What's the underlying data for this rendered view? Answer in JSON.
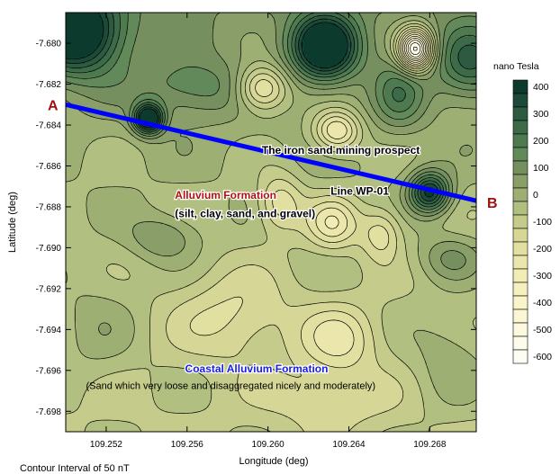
{
  "chart_data": {
    "type": "contour",
    "xlabel": "Longitude (deg)",
    "ylabel": "Latitude (deg)",
    "xlim": [
      109.25,
      109.2703
    ],
    "ylim": [
      -7.699,
      -7.6785
    ],
    "xticks": [
      109.252,
      109.256,
      109.26,
      109.264,
      109.268
    ],
    "xtick_labels": [
      "109.252",
      "109.256",
      "109.260",
      "109.264",
      "109.268"
    ],
    "yticks": [
      -7.68,
      -7.682,
      -7.684,
      -7.686,
      -7.688,
      -7.69,
      -7.692,
      -7.694,
      -7.696,
      -7.698
    ],
    "ytick_labels": [
      "-7.680",
      "-7.682",
      "-7.684",
      "-7.686",
      "-7.688",
      "-7.690",
      "-7.692",
      "-7.694",
      "-7.696",
      "-7.698"
    ],
    "contour_interval_note": "Contour Interval of 50 nT",
    "colorbar": {
      "title": "nano Tesla",
      "levels": [
        400,
        350,
        300,
        250,
        200,
        150,
        100,
        50,
        0,
        -50,
        -100,
        -150,
        -200,
        -250,
        -300,
        -350,
        -400,
        -450,
        -500,
        -550,
        -600
      ],
      "labels": [
        "400",
        "300",
        "200",
        "100",
        "0",
        "-100",
        "-200",
        "-300",
        "-400",
        "-500",
        "-600"
      ],
      "colors": [
        "#0c3b2e",
        "#1d4a38",
        "#2d5a40",
        "#3d6a48",
        "#4f7a50",
        "#62895a",
        "#768f5e",
        "#899e68",
        "#9daf72",
        "#b1bf80",
        "#c5cb8a",
        "#d6d796",
        "#e2e0a0",
        "#ebe6ab",
        "#f2ecb5",
        "#f6f0c0",
        "#f9f4ca",
        "#fbf7d5",
        "#fcf9df",
        "#fdfbea",
        "#fefdf4"
      ]
    },
    "profile": {
      "name": "Line WP-01",
      "start_label": "A",
      "end_label": "B",
      "start": [
        109.25,
        -7.683
      ],
      "end": [
        109.2703,
        -7.6877
      ],
      "color": "#0000ff"
    },
    "annotations": [
      {
        "text": "The iron sand mining prospect",
        "x": 109.2597,
        "y": -7.6854,
        "color": "#000000",
        "weight": "bold"
      },
      {
        "text": "Line WP-01",
        "x": 109.2631,
        "y": -7.6874,
        "color": "#000000",
        "weight": "bold"
      },
      {
        "text": "Alluvium Formation",
        "x": 109.2554,
        "y": -7.6876,
        "color": "#b01010",
        "weight": "bold"
      },
      {
        "text": "(silt, clay, sand, and gravel)",
        "x": 109.2554,
        "y": -7.6885,
        "color": "#000000",
        "weight": "bold"
      },
      {
        "text": "Coastal Alluvium Formation",
        "x": 109.2559,
        "y": -7.6961,
        "color": "#1a20e0",
        "weight": "bold"
      },
      {
        "text": "(Sand which very loose and disaggregated nicely and moderately)",
        "x": 109.251,
        "y": -7.6969,
        "color": "#000000",
        "weight": "normal"
      }
    ],
    "anomalies": [
      {
        "x": 109.2505,
        "y": -7.6795,
        "amp": 500,
        "sx": 0.0016,
        "sy": 0.0014
      },
      {
        "x": 109.2541,
        "y": -7.6837,
        "amp": 520,
        "sx": 0.0005,
        "sy": 0.0005
      },
      {
        "x": 109.2628,
        "y": -7.6802,
        "amp": 520,
        "sx": 0.0011,
        "sy": 0.0011
      },
      {
        "x": 109.2673,
        "y": -7.6803,
        "amp": -650,
        "sx": 0.0006,
        "sy": 0.0007
      },
      {
        "x": 109.268,
        "y": -7.6873,
        "amp": 430,
        "sx": 0.0007,
        "sy": 0.0007
      },
      {
        "x": 109.2563,
        "y": -7.6822,
        "amp": 150,
        "sx": 0.002,
        "sy": 0.001
      },
      {
        "x": 109.2597,
        "y": -7.6822,
        "amp": -300,
        "sx": 0.0009,
        "sy": 0.0008
      },
      {
        "x": 109.2634,
        "y": -7.6843,
        "amp": -280,
        "sx": 0.0008,
        "sy": 0.0007
      },
      {
        "x": 109.2665,
        "y": -7.6825,
        "amp": 180,
        "sx": 0.0009,
        "sy": 0.0012
      },
      {
        "x": 109.27,
        "y": -7.681,
        "amp": 250,
        "sx": 0.0012,
        "sy": 0.0012
      },
      {
        "x": 109.2548,
        "y": -7.6895,
        "amp": 130,
        "sx": 0.0012,
        "sy": 0.0008
      },
      {
        "x": 109.2606,
        "y": -7.6878,
        "amp": -180,
        "sx": 0.0008,
        "sy": 0.001
      },
      {
        "x": 109.2632,
        "y": -7.6888,
        "amp": -210,
        "sx": 0.0009,
        "sy": 0.0009
      },
      {
        "x": 109.2656,
        "y": -7.6893,
        "amp": -160,
        "sx": 0.0007,
        "sy": 0.0009
      },
      {
        "x": 109.269,
        "y": -7.6905,
        "amp": 130,
        "sx": 0.0011,
        "sy": 0.0008
      },
      {
        "x": 109.2583,
        "y": -7.6933,
        "amp": -120,
        "sx": 0.002,
        "sy": 0.0015
      },
      {
        "x": 109.2635,
        "y": -7.6945,
        "amp": -160,
        "sx": 0.0013,
        "sy": 0.0012
      },
      {
        "x": 109.2515,
        "y": -7.694,
        "amp": 70,
        "sx": 0.0015,
        "sy": 0.002
      },
      {
        "x": 109.269,
        "y": -7.6955,
        "amp": 90,
        "sx": 0.0013,
        "sy": 0.0017
      },
      {
        "x": 109.263,
        "y": -7.6975,
        "amp": -90,
        "sx": 0.002,
        "sy": 0.001
      }
    ],
    "background": {
      "base": -60,
      "north_gradient": 160
    }
  }
}
